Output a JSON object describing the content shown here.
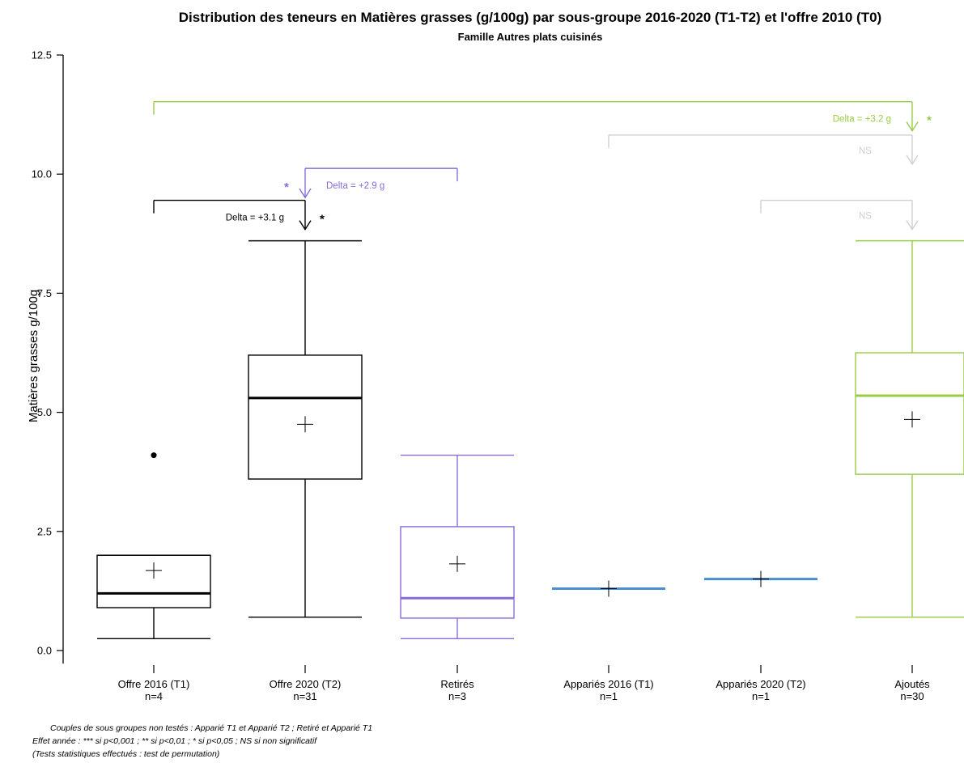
{
  "chart_data": {
    "type": "boxplot",
    "title": "Distribution des teneurs en Matières grasses (g/100g) par sous-groupe 2016-2020 (T1-T2) et l'offre 2010 (T0)",
    "subtitle": "Famille Autres plats cuisinés",
    "ylabel": "Matières grasses g/100g",
    "ylim": [
      0,
      12.5
    ],
    "yticks": [
      0.0,
      2.5,
      5.0,
      7.5,
      10.0,
      12.5
    ],
    "ytick_labels": [
      "0.0",
      "2.5",
      "5.0",
      "7.5",
      "10.0",
      "12.5"
    ],
    "groups": [
      {
        "label": "Offre 2016 (T1)",
        "n_label": "n=4",
        "color": "#000000",
        "kind": "box",
        "whisker_low": 0.25,
        "q1": 0.9,
        "median": 1.2,
        "q3": 2.0,
        "whisker_high": 2.0,
        "mean": 1.68,
        "outliers": [
          4.1
        ]
      },
      {
        "label": "Offre 2020 (T2)",
        "n_label": "n=31",
        "color": "#000000",
        "kind": "box",
        "whisker_low": 0.7,
        "q1": 3.6,
        "median": 5.3,
        "q3": 6.2,
        "whisker_high": 8.6,
        "mean": 4.75,
        "outliers": []
      },
      {
        "label": "Retirés",
        "n_label": "n=3",
        "color": "#8a6bd6",
        "kind": "box",
        "whisker_low": 0.25,
        "q1": 0.68,
        "median": 1.1,
        "q3": 2.6,
        "whisker_high": 4.1,
        "mean": 1.82,
        "outliers": []
      },
      {
        "label": "Appariés 2016 (T1)",
        "n_label": "n=1",
        "color": "#4a8fcf",
        "kind": "single",
        "median": 1.3,
        "mean": 1.3,
        "outliers": []
      },
      {
        "label": "Appariés 2020 (T2)",
        "n_label": "n=1",
        "color": "#4a8fcf",
        "kind": "single",
        "median": 1.5,
        "mean": 1.5,
        "outliers": []
      },
      {
        "label": "Ajoutés",
        "n_label": "n=30",
        "color": "#99cc44",
        "kind": "box",
        "whisker_low": 0.7,
        "q1": 3.7,
        "median": 5.35,
        "q3": 6.25,
        "whisker_high": 8.6,
        "mean": 4.85,
        "outliers": []
      }
    ],
    "comparisons": [
      {
        "from": 0,
        "to": 1,
        "level": 9.45,
        "color": "#000000",
        "label": "Delta = +3.1 g",
        "sig": "*",
        "label_side": "left",
        "sig_side": "right"
      },
      {
        "from": 2,
        "to": 1,
        "level": 10.12,
        "color": "#8a6bd6",
        "label": "Delta = +2.9 g",
        "sig": "*",
        "label_side": "right",
        "sig_side": "left"
      },
      {
        "from": 3,
        "to": 5,
        "level": 10.82,
        "color": "#d0d0d0",
        "label": "",
        "sig": "NS",
        "label_side": "left",
        "sig_side": "left"
      },
      {
        "from": 0,
        "to": 5,
        "level": 11.52,
        "color": "#99cc44",
        "label": "Delta = +3.2 g",
        "sig": "*",
        "label_side": "left",
        "sig_side": "right"
      },
      {
        "from": 4,
        "to": 5,
        "level": 9.45,
        "color": "#d0d0d0",
        "label": "",
        "sig": "NS",
        "label_side": "left",
        "sig_side": "left"
      }
    ]
  },
  "footnotes": [
    "Couples de sous groupes non testés : Apparié T1 et Apparié T2 ; Retiré et Apparié T1",
    "Effet année : *** si p<0,001 ; ** si p<0,01 ; * si p<0,05 ; NS si non significatif",
    "(Tests statistiques effectués : test de permutation)"
  ]
}
